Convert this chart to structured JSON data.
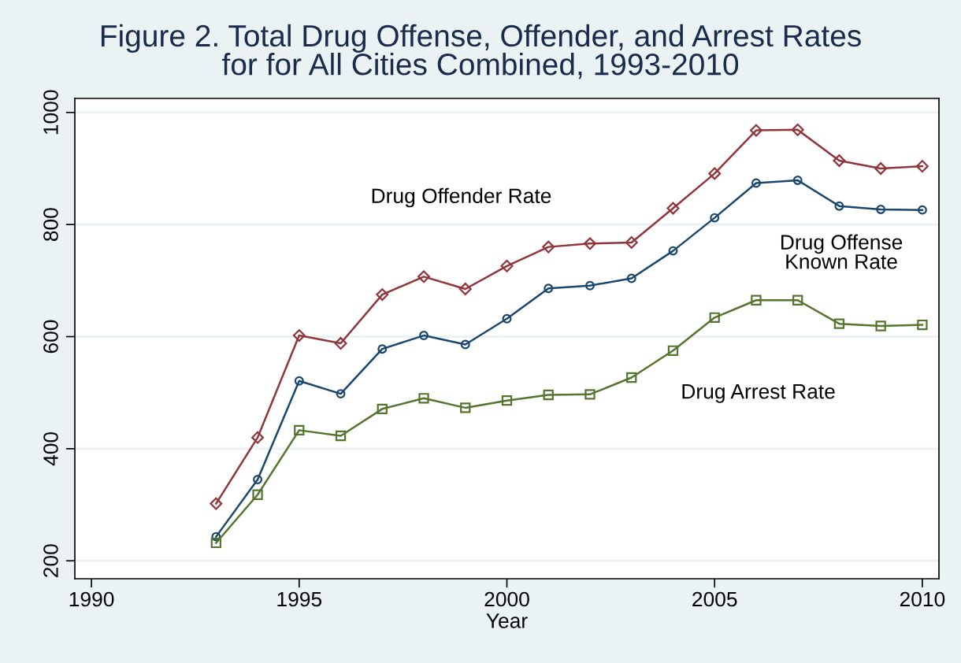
{
  "chart_data": {
    "type": "line",
    "title": "Figure 2. Total Drug Offense, Offender, and Arrest Rates\nfor for All Cities Combined, 1993-2010",
    "xlabel": "Year",
    "x": [
      1993,
      1994,
      1995,
      1996,
      1997,
      1998,
      1999,
      2000,
      2001,
      2002,
      2003,
      2004,
      2005,
      2006,
      2007,
      2008,
      2009,
      2010
    ],
    "series": [
      {
        "name": "Drug Offender Rate",
        "color": "#90353b",
        "marker": "diamond",
        "values": [
          302,
          420,
          602,
          588,
          675,
          707,
          685,
          726,
          760,
          766,
          768,
          829,
          891,
          968,
          969,
          914,
          900,
          904
        ]
      },
      {
        "name": "Drug Offense\nKnown Rate",
        "color": "#1a476f",
        "marker": "circle",
        "values": [
          243,
          345,
          521,
          498,
          578,
          602,
          586,
          632,
          686,
          691,
          704,
          753,
          812,
          874,
          879,
          833,
          827,
          826
        ]
      },
      {
        "name": "Drug Arrest Rate",
        "color": "#55752f",
        "marker": "square",
        "values": [
          232,
          318,
          433,
          423,
          471,
          490,
          473,
          486,
          496,
          497,
          527,
          575,
          634,
          665,
          665,
          623,
          619,
          621
        ]
      }
    ],
    "xlim": [
      1989.6,
      2010.4
    ],
    "xticks": [
      1990,
      1995,
      2000,
      2005,
      2010
    ],
    "ylim": [
      168,
      1025
    ],
    "yticks": [
      200,
      400,
      600,
      800,
      1000
    ],
    "grid": "y",
    "legend": false,
    "line_style": "solid"
  }
}
